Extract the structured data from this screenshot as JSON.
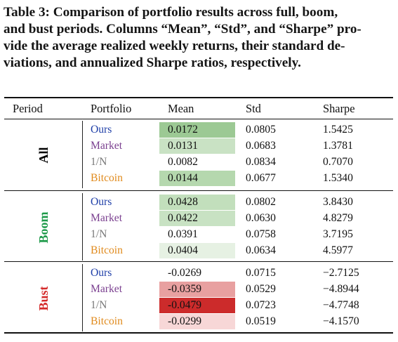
{
  "caption": "Table 3: Comparison of portfolio results across full, boom, and bust periods. Columns “Mean”, “Std”, and “Sharpe” provide the average realized weekly returns, their standard deviations, and annualized Sharpe ratios, respectively.",
  "caption_lines": [
    "Table 3: Comparison of portfolio results across full, boom,",
    "and bust periods. Columns “Mean”, “Std”, and “Sharpe” pro-",
    "vide the average realized weekly returns, their standard de-",
    "viations, and annualized Sharpe ratios, respectively."
  ],
  "headers": {
    "period": "Period",
    "portfolio": "Portfolio",
    "mean": "Mean",
    "std": "Std",
    "sharpe": "Sharpe"
  },
  "colors": {
    "ours": "#1f3fa8",
    "market": "#7a3f8f",
    "one_n": "#777777",
    "bitcoin": "#e08a1c",
    "period_all": "#000000",
    "period_boom": "#1e9a4a",
    "period_bust": "#d42a2a"
  },
  "groups": [
    {
      "period": "All",
      "rows": [
        {
          "portfolio": "Ours",
          "mean": "0.0172",
          "std": "0.0805",
          "sharpe": "1.5425",
          "shade": "#9cc994"
        },
        {
          "portfolio": "Market",
          "mean": "0.0131",
          "std": "0.0683",
          "sharpe": "1.3781",
          "shade": "#c9e2c4"
        },
        {
          "portfolio": "1/N",
          "mean": "0.0082",
          "std": "0.0834",
          "sharpe": "0.7070",
          "shade": ""
        },
        {
          "portfolio": "Bitcoin",
          "mean": "0.0144",
          "std": "0.0677",
          "sharpe": "1.5340",
          "shade": "#b5d8ae"
        }
      ]
    },
    {
      "period": "Boom",
      "rows": [
        {
          "portfolio": "Ours",
          "mean": "0.0428",
          "std": "0.0802",
          "sharpe": "3.8430",
          "shade": "#c2dfbc"
        },
        {
          "portfolio": "Market",
          "mean": "0.0422",
          "std": "0.0630",
          "sharpe": "4.8279",
          "shade": "#c8e2c3"
        },
        {
          "portfolio": "1/N",
          "mean": "0.0391",
          "std": "0.0758",
          "sharpe": "3.7195",
          "shade": ""
        },
        {
          "portfolio": "Bitcoin",
          "mean": "0.0404",
          "std": "0.0634",
          "sharpe": "4.5977",
          "shade": "#e6f1e3"
        }
      ]
    },
    {
      "period": "Bust",
      "rows": [
        {
          "portfolio": "Ours",
          "mean": "-0.0269",
          "std": "0.0715",
          "sharpe": "−2.7125",
          "shade": ""
        },
        {
          "portfolio": "Market",
          "mean": "-0.0359",
          "std": "0.0529",
          "sharpe": "−4.8944",
          "shade": "#e8a0a0"
        },
        {
          "portfolio": "1/N",
          "mean": "-0.0479",
          "std": "0.0723",
          "sharpe": "−4.7748",
          "shade": "#cc2b2b"
        },
        {
          "portfolio": "Bitcoin",
          "mean": "-0.0299",
          "std": "0.0519",
          "sharpe": "−4.1570",
          "shade": "#f7d7d7"
        }
      ]
    }
  ]
}
